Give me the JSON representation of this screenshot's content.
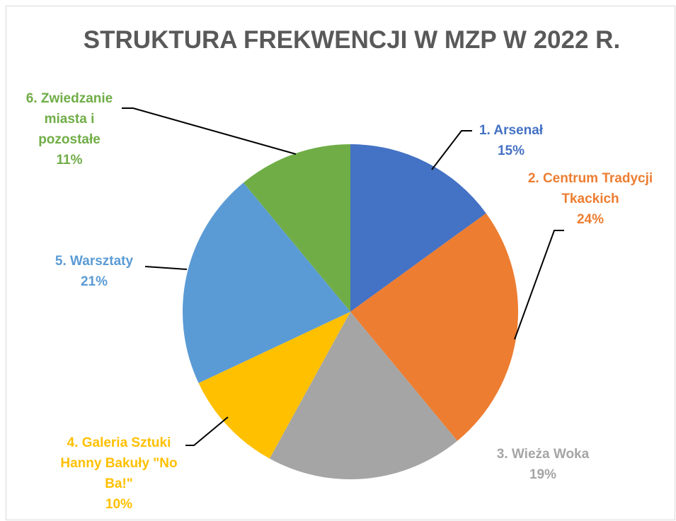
{
  "chart_data": {
    "type": "pie",
    "title": "STRUKTURA FREKWENCJI W MZP W 2022 R.",
    "categories": [
      "1. Arsenał",
      "2. Centrum Tradycji Tkackich",
      "3. Wieża Woka",
      "4. Galeria Sztuki Hanny Bakuły \"No Ba!\"",
      "5. Warsztaty",
      "6. Zwiedzanie miasta i pozostałe"
    ],
    "values": [
      15,
      24,
      19,
      10,
      21,
      11
    ],
    "value_labels": [
      "15%",
      "24%",
      "19%",
      "10%",
      "21%",
      "11%"
    ],
    "colors": [
      "#4472c4",
      "#ed7d31",
      "#a5a5a5",
      "#ffc000",
      "#5b9bd5",
      "#70ad47"
    ]
  }
}
